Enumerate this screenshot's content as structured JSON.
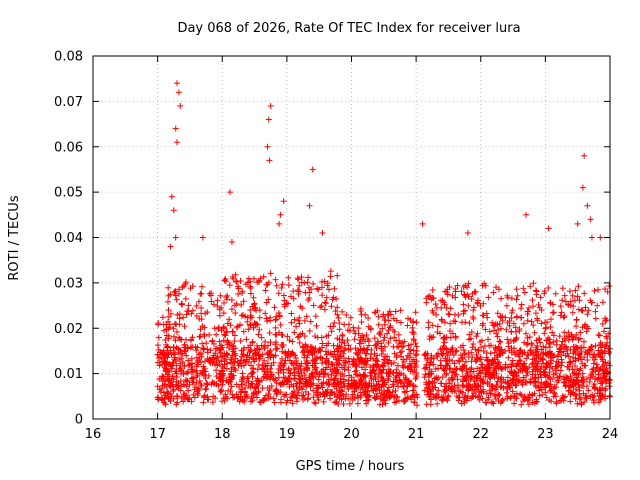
{
  "chart_data": {
    "type": "scatter",
    "title": "Day 068 of 2026, Rate Of TEC Index for receiver lura",
    "xlabel": "GPS time / hours",
    "ylabel": "ROTI / TECUs",
    "xlim": [
      16,
      24
    ],
    "ylim": [
      0,
      0.08
    ],
    "x_ticks": [
      "16",
      "17",
      "18",
      "19",
      "20",
      "21",
      "22",
      "23",
      "24"
    ],
    "y_ticks": [
      "0",
      "0.01",
      "0.02",
      "0.03",
      "0.04",
      "0.05",
      "0.06",
      "0.07",
      "0.08"
    ],
    "grid": true,
    "marker": "+",
    "series_color": "#ff0000",
    "series": [
      {
        "name": "ROTI",
        "description": "dense cloud of ROTI samples from ~17.0 to 24.0 h, mostly 0.005-0.03 TECU/s, with spikes",
        "peaks": [
          {
            "x": 17.3,
            "y": 0.074
          },
          {
            "x": 17.33,
            "y": 0.072
          },
          {
            "x": 17.35,
            "y": 0.069
          },
          {
            "x": 17.28,
            "y": 0.064
          },
          {
            "x": 17.3,
            "y": 0.061
          },
          {
            "x": 17.22,
            "y": 0.049
          },
          {
            "x": 17.25,
            "y": 0.046
          },
          {
            "x": 17.28,
            "y": 0.04
          },
          {
            "x": 17.2,
            "y": 0.038
          },
          {
            "x": 17.7,
            "y": 0.04
          },
          {
            "x": 18.12,
            "y": 0.05
          },
          {
            "x": 18.15,
            "y": 0.039
          },
          {
            "x": 18.75,
            "y": 0.069
          },
          {
            "x": 18.72,
            "y": 0.066
          },
          {
            "x": 18.7,
            "y": 0.06
          },
          {
            "x": 18.73,
            "y": 0.057
          },
          {
            "x": 18.95,
            "y": 0.048
          },
          {
            "x": 18.9,
            "y": 0.045
          },
          {
            "x": 18.88,
            "y": 0.043
          },
          {
            "x": 19.4,
            "y": 0.055
          },
          {
            "x": 19.35,
            "y": 0.047
          },
          {
            "x": 19.55,
            "y": 0.041
          },
          {
            "x": 21.1,
            "y": 0.043
          },
          {
            "x": 21.8,
            "y": 0.041
          },
          {
            "x": 22.7,
            "y": 0.045
          },
          {
            "x": 23.05,
            "y": 0.042
          },
          {
            "x": 23.6,
            "y": 0.058
          },
          {
            "x": 23.58,
            "y": 0.051
          },
          {
            "x": 23.65,
            "y": 0.047
          },
          {
            "x": 23.5,
            "y": 0.043
          },
          {
            "x": 23.7,
            "y": 0.044
          },
          {
            "x": 23.72,
            "y": 0.04
          },
          {
            "x": 23.85,
            "y": 0.04
          }
        ]
      }
    ]
  }
}
